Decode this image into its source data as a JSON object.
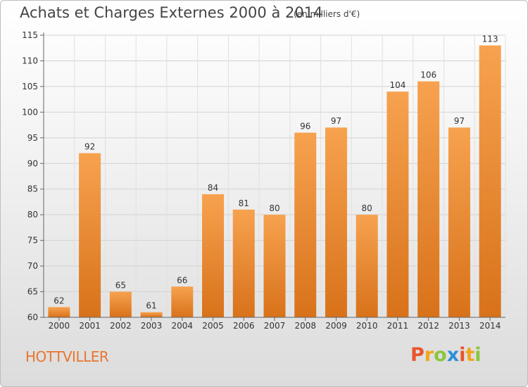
{
  "header": {
    "title": "Achats et Charges Externes 2000 à 2014",
    "subtitle": "(en milliers d'€)"
  },
  "footer": {
    "commune": "HOTTVILLER",
    "logo": [
      "P",
      "r",
      "o",
      "x",
      "i",
      "t",
      "i"
    ]
  },
  "colors": {
    "bar_top": "#f7a24f",
    "bar_bottom": "#d8721a",
    "commune_text": "#e8762c"
  },
  "chart_data": {
    "type": "bar",
    "title": "Achats et Charges Externes 2000 à 2014",
    "subtitle": "(en milliers d'€)",
    "categories": [
      "2000",
      "2001",
      "2002",
      "2003",
      "2004",
      "2005",
      "2006",
      "2007",
      "2008",
      "2009",
      "2010",
      "2011",
      "2012",
      "2013",
      "2014"
    ],
    "values": [
      62,
      92,
      65,
      61,
      66,
      84,
      81,
      80,
      96,
      97,
      80,
      104,
      106,
      97,
      113
    ],
    "ylim": [
      60,
      115
    ],
    "yticks": [
      60,
      65,
      70,
      75,
      80,
      85,
      90,
      95,
      100,
      105,
      110,
      115
    ],
    "grid": true,
    "data_labels": true
  }
}
